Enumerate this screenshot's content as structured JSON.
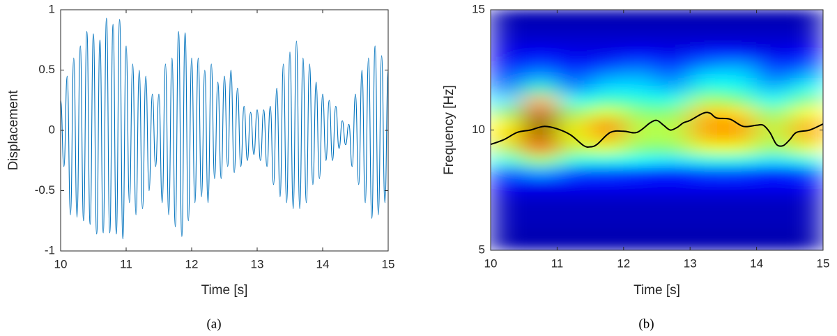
{
  "chart_data": [
    {
      "type": "line",
      "xlabel": "Time [s]",
      "ylabel": "Displacement",
      "caption": "(a)",
      "xlim": [
        10,
        15
      ],
      "ylim": [
        -1,
        1
      ],
      "xticks": [
        10,
        11,
        12,
        13,
        14,
        15
      ],
      "yticks": [
        -1,
        -0.5,
        0,
        0.5,
        1
      ],
      "x": [
        10.0,
        10.05,
        10.1,
        10.15,
        10.2,
        10.25,
        10.3,
        10.35,
        10.4,
        10.45,
        10.5,
        10.55,
        10.6,
        10.65,
        10.7,
        10.75,
        10.8,
        10.85,
        10.9,
        10.95,
        11.0,
        11.05,
        11.1,
        11.15,
        11.2,
        11.25,
        11.3,
        11.35,
        11.4,
        11.45,
        11.5,
        11.55,
        11.6,
        11.65,
        11.7,
        11.75,
        11.8,
        11.85,
        11.9,
        11.95,
        12.0,
        12.05,
        12.1,
        12.15,
        12.2,
        12.25,
        12.3,
        12.35,
        12.4,
        12.45,
        12.5,
        12.55,
        12.6,
        12.65,
        12.7,
        12.75,
        12.8,
        12.85,
        12.9,
        12.95,
        13.0,
        13.05,
        13.1,
        13.15,
        13.2,
        13.25,
        13.3,
        13.35,
        13.4,
        13.45,
        13.5,
        13.55,
        13.6,
        13.65,
        13.7,
        13.75,
        13.8,
        13.85,
        13.9,
        13.95,
        14.0,
        14.05,
        14.1,
        14.15,
        14.2,
        14.25,
        14.3,
        14.35,
        14.4,
        14.45,
        14.5,
        14.55,
        14.6,
        14.65,
        14.7,
        14.75,
        14.8,
        14.85,
        14.9,
        14.95,
        15.0
      ],
      "series": [
        {
          "color": "#0072bd",
          "values": [
            0.25,
            -0.3,
            0.45,
            -0.7,
            0.6,
            -0.72,
            0.7,
            -0.75,
            0.82,
            -0.78,
            0.8,
            -0.86,
            0.75,
            -0.85,
            0.93,
            -0.85,
            0.88,
            -0.86,
            0.92,
            -0.9,
            0.7,
            -0.6,
            0.55,
            -0.7,
            0.5,
            -0.65,
            0.45,
            -0.5,
            0.3,
            -0.3,
            0.3,
            -0.6,
            0.55,
            -0.7,
            0.6,
            -0.8,
            0.82,
            -0.88,
            0.81,
            -0.75,
            0.6,
            -0.6,
            0.6,
            -0.55,
            0.5,
            -0.6,
            0.55,
            -0.4,
            0.4,
            -0.4,
            0.45,
            -0.3,
            0.5,
            -0.35,
            0.35,
            -0.3,
            0.2,
            -0.25,
            0.15,
            -0.2,
            0.17,
            -0.25,
            0.17,
            -0.3,
            0.2,
            -0.45,
            0.35,
            -0.55,
            0.55,
            -0.6,
            0.65,
            -0.65,
            0.74,
            -0.65,
            0.6,
            -0.6,
            0.55,
            -0.45,
            0.4,
            -0.4,
            0.3,
            -0.25,
            0.25,
            -0.25,
            0.2,
            -0.15,
            0.08,
            -0.12,
            0.05,
            -0.3,
            0.3,
            -0.45,
            0.5,
            -0.6,
            0.6,
            -0.73,
            0.7,
            -0.7,
            0.62,
            -0.6,
            0.5
          ]
        }
      ]
    },
    {
      "type": "heatmap",
      "xlabel": "Time [s]",
      "ylabel": "Frequency [Hz]",
      "caption": "(b)",
      "xlim": [
        10,
        15
      ],
      "ylim": [
        5,
        15
      ],
      "xticks": [
        10,
        11,
        12,
        13,
        14,
        15
      ],
      "yticks": [
        5,
        10,
        15
      ],
      "x": [
        10.25,
        10.75,
        11.25,
        11.75,
        12.25,
        12.75,
        13.25,
        13.75,
        14.25,
        14.75
      ],
      "y": [
        5.25,
        5.75,
        6.25,
        6.75,
        7.25,
        7.75,
        8.25,
        8.75,
        9.25,
        9.75,
        10.25,
        10.75,
        11.25,
        11.75,
        12.25,
        12.75,
        13.25,
        13.75,
        14.25,
        14.75
      ],
      "z": [
        [
          0.05,
          0.05,
          0.05,
          0.05,
          0.05,
          0.05,
          0.05,
          0.05,
          0.05,
          0.05
        ],
        [
          0.05,
          0.05,
          0.05,
          0.05,
          0.05,
          0.05,
          0.05,
          0.05,
          0.05,
          0.05
        ],
        [
          0.06,
          0.06,
          0.06,
          0.06,
          0.06,
          0.06,
          0.06,
          0.06,
          0.06,
          0.06
        ],
        [
          0.06,
          0.06,
          0.06,
          0.06,
          0.06,
          0.06,
          0.06,
          0.06,
          0.06,
          0.06
        ],
        [
          0.08,
          0.08,
          0.08,
          0.08,
          0.08,
          0.08,
          0.08,
          0.08,
          0.08,
          0.08
        ],
        [
          0.12,
          0.12,
          0.12,
          0.12,
          0.12,
          0.12,
          0.12,
          0.12,
          0.12,
          0.12
        ],
        [
          0.2,
          0.3,
          0.2,
          0.2,
          0.18,
          0.15,
          0.2,
          0.2,
          0.15,
          0.2
        ],
        [
          0.4,
          0.55,
          0.4,
          0.4,
          0.38,
          0.35,
          0.4,
          0.4,
          0.35,
          0.4
        ],
        [
          0.55,
          0.8,
          0.55,
          0.6,
          0.5,
          0.5,
          0.6,
          0.6,
          0.5,
          0.6
        ],
        [
          0.65,
          0.95,
          0.6,
          0.72,
          0.55,
          0.55,
          0.7,
          0.7,
          0.55,
          0.7
        ],
        [
          0.62,
          1.0,
          0.6,
          0.75,
          0.55,
          0.55,
          0.72,
          0.72,
          0.55,
          0.7
        ],
        [
          0.5,
          0.9,
          0.5,
          0.6,
          0.5,
          0.5,
          0.68,
          0.65,
          0.48,
          0.62
        ],
        [
          0.35,
          0.7,
          0.38,
          0.45,
          0.42,
          0.4,
          0.55,
          0.5,
          0.38,
          0.5
        ],
        [
          0.25,
          0.45,
          0.25,
          0.35,
          0.35,
          0.3,
          0.42,
          0.4,
          0.3,
          0.4
        ],
        [
          0.18,
          0.3,
          0.18,
          0.28,
          0.3,
          0.22,
          0.35,
          0.35,
          0.22,
          0.3
        ],
        [
          0.12,
          0.2,
          0.12,
          0.18,
          0.22,
          0.15,
          0.25,
          0.28,
          0.15,
          0.2
        ],
        [
          0.1,
          0.12,
          0.1,
          0.1,
          0.12,
          0.1,
          0.15,
          0.15,
          0.1,
          0.12
        ],
        [
          0.08,
          0.08,
          0.08,
          0.08,
          0.08,
          0.08,
          0.08,
          0.08,
          0.08,
          0.08
        ],
        [
          0.06,
          0.06,
          0.06,
          0.06,
          0.06,
          0.06,
          0.06,
          0.06,
          0.06,
          0.06
        ],
        [
          0.05,
          0.05,
          0.05,
          0.05,
          0.05,
          0.05,
          0.05,
          0.05,
          0.05,
          0.05
        ]
      ],
      "series": [
        {
          "color": "#000000",
          "x": [
            10.0,
            10.2,
            10.4,
            10.6,
            10.8,
            11.0,
            11.2,
            11.4,
            11.5,
            11.6,
            11.8,
            12.0,
            12.2,
            12.4,
            12.5,
            12.6,
            12.7,
            12.8,
            12.9,
            13.0,
            13.2,
            13.3,
            13.4,
            13.6,
            13.8,
            14.0,
            14.1,
            14.2,
            14.3,
            14.4,
            14.5,
            14.6,
            14.8,
            15.0
          ],
          "values": [
            9.4,
            9.6,
            9.9,
            10.0,
            10.15,
            10.05,
            9.8,
            9.35,
            9.3,
            9.4,
            9.9,
            9.95,
            9.9,
            10.3,
            10.4,
            10.2,
            10.0,
            10.1,
            10.3,
            10.4,
            10.7,
            10.7,
            10.5,
            10.45,
            10.15,
            10.2,
            10.2,
            9.9,
            9.4,
            9.35,
            9.6,
            9.9,
            10.0,
            10.25
          ]
        }
      ]
    }
  ]
}
